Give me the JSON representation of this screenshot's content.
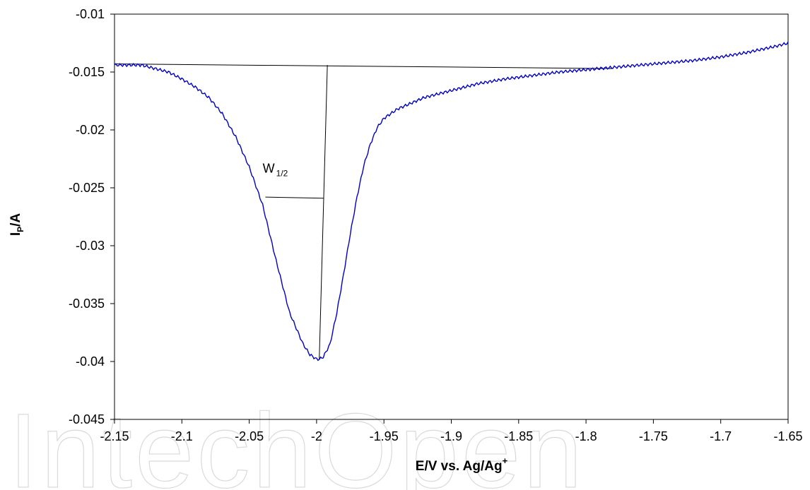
{
  "chart_data": {
    "type": "line",
    "xlabel": {
      "main": "E/V vs. Ag/Ag",
      "sup": "+"
    },
    "ylabel": {
      "main": "I",
      "sub": "P",
      "rest": "/A"
    },
    "xlim": [
      -2.15,
      -1.65
    ],
    "ylim": [
      -0.045,
      -0.01
    ],
    "x_ticks": [
      "-2.15",
      "-2.1",
      "-2.05",
      "-2",
      "-1.95",
      "-1.9",
      "-1.85",
      "-1.8",
      "-1.75",
      "-1.7",
      "-1.65"
    ],
    "y_ticks": [
      "-0.01",
      "-0.015",
      "-0.02",
      "-0.025",
      "-0.03",
      "-0.035",
      "-0.04",
      "-0.045"
    ],
    "grid": false,
    "series": [
      {
        "color": "#0000cc",
        "x": [
          -2.15,
          -2.14,
          -2.13,
          -2.12,
          -2.11,
          -2.1,
          -2.09,
          -2.08,
          -2.07,
          -2.06,
          -2.05,
          -2.04,
          -2.03,
          -2.02,
          -2.01,
          -2.005,
          -2.0,
          -1.998,
          -1.995,
          -1.99,
          -1.985,
          -1.98,
          -1.975,
          -1.97,
          -1.965,
          -1.96,
          -1.955,
          -1.95,
          -1.94,
          -1.93,
          -1.92,
          -1.9,
          -1.88,
          -1.86,
          -1.84,
          -1.82,
          -1.8,
          -1.78,
          -1.76,
          -1.74,
          -1.72,
          -1.7,
          -1.68,
          -1.66,
          -1.65
        ],
        "y": [
          -0.0144,
          -0.0144,
          -0.0144,
          -0.0147,
          -0.015,
          -0.0156,
          -0.0163,
          -0.0172,
          -0.0186,
          -0.0206,
          -0.0232,
          -0.0265,
          -0.0313,
          -0.0358,
          -0.0385,
          -0.0394,
          -0.0398,
          -0.0398,
          -0.0396,
          -0.0385,
          -0.0358,
          -0.0325,
          -0.029,
          -0.0258,
          -0.0231,
          -0.0212,
          -0.0198,
          -0.019,
          -0.0182,
          -0.0177,
          -0.0172,
          -0.0166,
          -0.016,
          -0.0156,
          -0.0153,
          -0.015,
          -0.0148,
          -0.0146,
          -0.0144,
          -0.0142,
          -0.014,
          -0.0137,
          -0.0133,
          -0.0128,
          -0.0125
        ]
      }
    ],
    "annotations": {
      "baseline": {
        "x": [
          -2.15,
          -1.78
        ],
        "y": [
          -0.0143,
          -0.0147
        ]
      },
      "peak_line": {
        "x": [
          -1.998,
          -1.992
        ],
        "y": [
          -0.0398,
          -0.0144
        ]
      },
      "half_width_line": {
        "x": [
          -2.038,
          -1.995
        ],
        "y": [
          -0.0258,
          -0.0259
        ]
      },
      "half_width_label": {
        "main": "W",
        "sub": "1/2",
        "x": -2.04,
        "y": -0.0237
      }
    }
  },
  "watermark": {
    "text": "IntechOpen"
  }
}
